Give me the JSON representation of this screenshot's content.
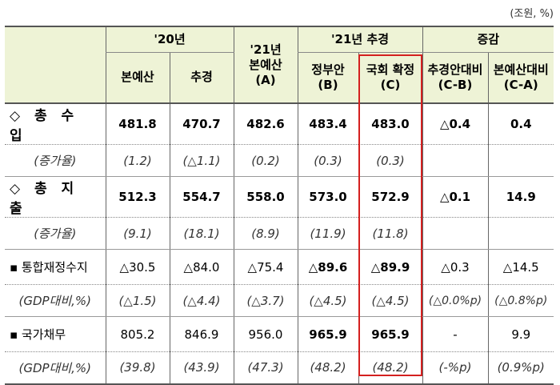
{
  "unit": "(조원, %)",
  "header": {
    "y20": "'20년",
    "y20_main": "본예산",
    "y20_supp": "추경",
    "y21_main_line1": "'21년",
    "y21_main_line2": "본예산",
    "y21_main_line3": "(A)",
    "y21_supp": "'21년 추경",
    "gov_line1": "정부안",
    "gov_line2": "(B)",
    "nat_line1": "국회 확정",
    "nat_line2": "(C)",
    "change": "증감",
    "vs_supp_line1": "추경안대비",
    "vs_supp_line2": "(C-B)",
    "vs_main_line1": "본예산대비",
    "vs_main_line2": "(C-A)"
  },
  "rows": [
    {
      "label": "◇ 총 수 입",
      "cells": [
        "481.8",
        "470.7",
        "482.6",
        "483.4",
        "483.0",
        "△0.4",
        "0.4"
      ]
    },
    {
      "label": "(증가율)",
      "cells": [
        "(1.2)",
        "(△1.1)",
        "(0.2)",
        "(0.3)",
        "(0.3)",
        "",
        ""
      ]
    },
    {
      "label": "◇ 총 지 출",
      "cells": [
        "512.3",
        "554.7",
        "558.0",
        "573.0",
        "572.9",
        "△0.1",
        "14.9"
      ]
    },
    {
      "label": "(증가율)",
      "cells": [
        "(9.1)",
        "(18.1)",
        "(8.9)",
        "(11.9)",
        "(11.8)",
        "",
        ""
      ]
    },
    {
      "label": "▪ 통합재정수지",
      "cells": [
        "△30.5",
        "△84.0",
        "△75.4",
        "△89.6",
        "△89.9",
        "△0.3",
        "△14.5"
      ]
    },
    {
      "label": "(GDP대비,%)",
      "cells": [
        "(△1.5)",
        "(△4.4)",
        "(△3.7)",
        "(△4.5)",
        "(△4.5)",
        "(△0.0%p)",
        "(△0.8%p)"
      ]
    },
    {
      "label": "▪ 국가채무",
      "cells": [
        "805.2",
        "846.9",
        "956.0",
        "965.9",
        "965.9",
        "-",
        "9.9"
      ]
    },
    {
      "label": "(GDP대비,%)",
      "cells": [
        "(39.8)",
        "(43.9)",
        "(47.3)",
        "(48.2)",
        "(48.2)",
        "(-%p)",
        "(0.9%p)"
      ]
    }
  ]
}
